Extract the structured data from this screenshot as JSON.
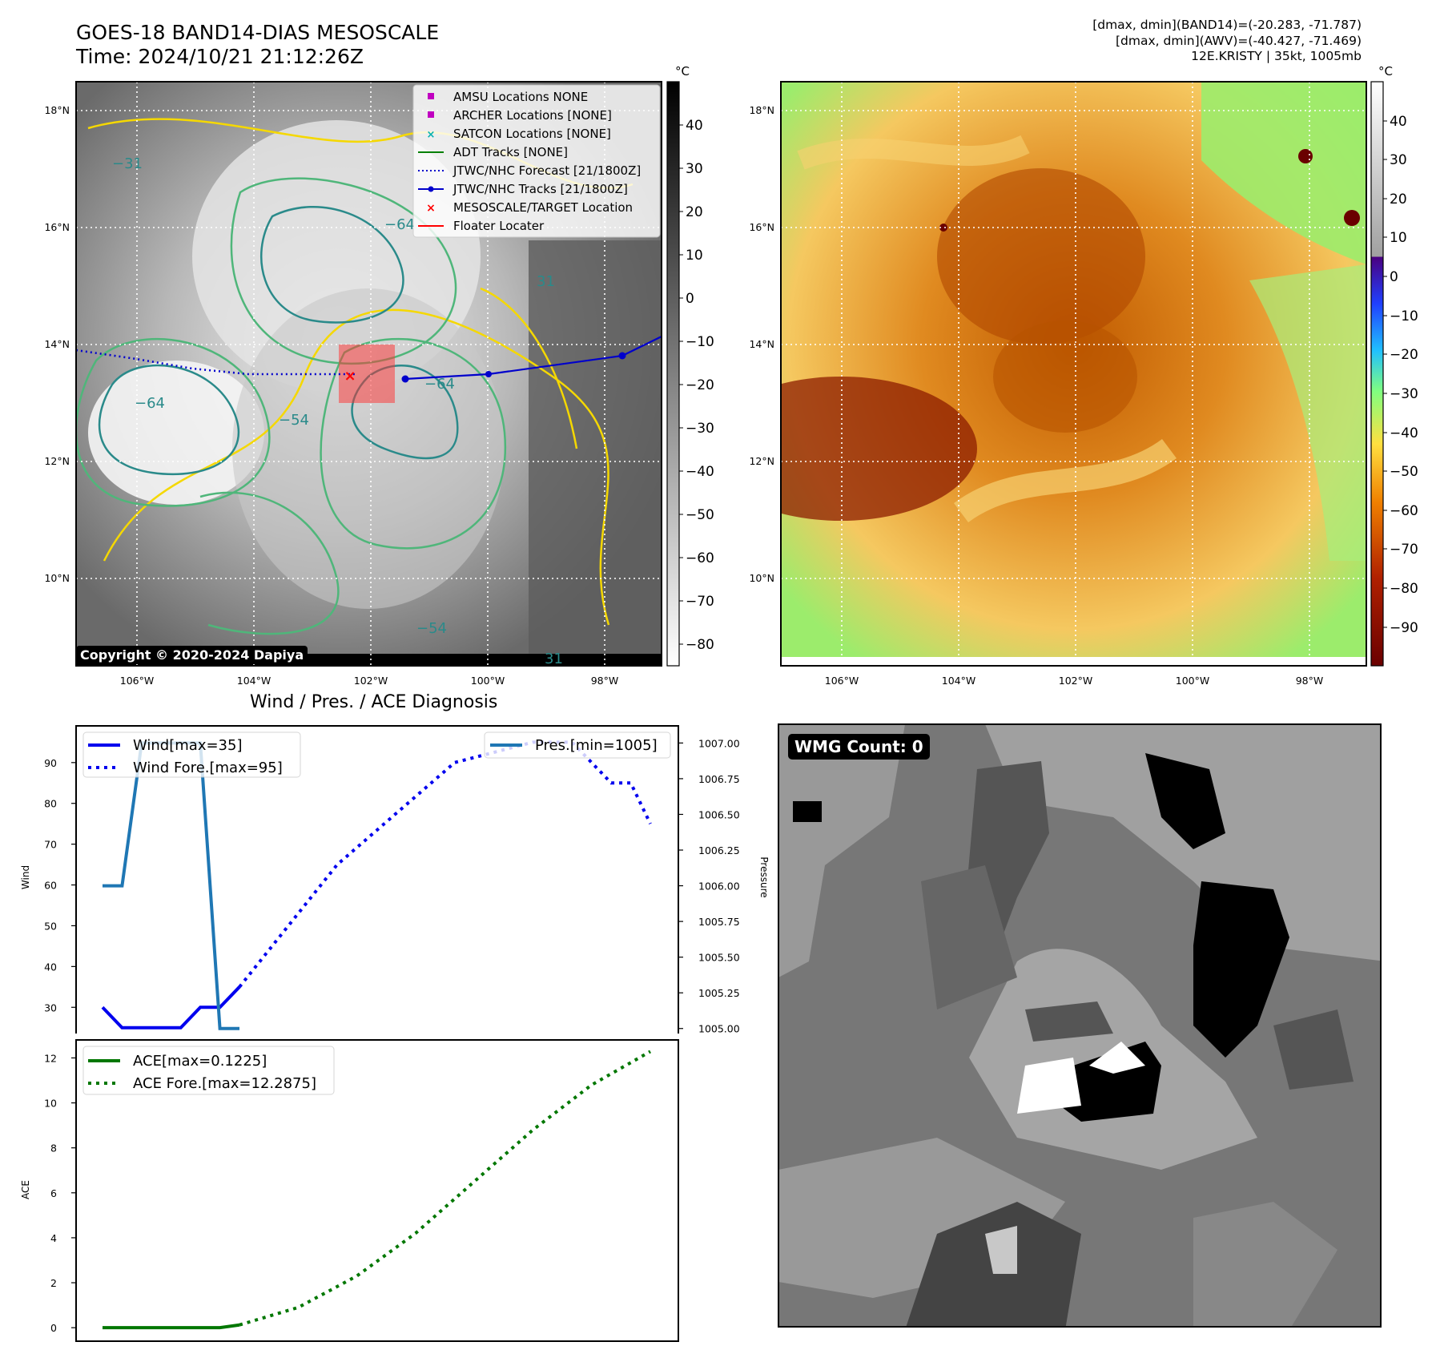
{
  "header": {
    "title_line1": "GOES-18 BAND14-DIAS MESOSCALE",
    "title_line2": "Time: 2024/10/21 21:12:26Z",
    "stats_line1": "[dmax, dmin](BAND14)=(-20.283, -71.787)",
    "stats_line2": "[dmax, dmin](AWV)=(-40.427, -71.469)",
    "stats_line3": "12E.KRISTY | 35kt, 1005mb"
  },
  "map_axes": {
    "lat_labels": [
      "18°N",
      "16°N",
      "14°N",
      "12°N",
      "10°N"
    ],
    "lon_labels": [
      "106°W",
      "104°W",
      "102°W",
      "100°W",
      "98°W"
    ]
  },
  "ir_panel": {
    "colorbar_unit": "°C",
    "colorbar_ticks": [
      "40",
      "30",
      "20",
      "10",
      "0",
      "−10",
      "−20",
      "−30",
      "−40",
      "−50",
      "−60",
      "−70",
      "−80"
    ],
    "contour_labels": [
      "−54",
      "−64",
      "−31",
      "−64",
      "−54",
      "31",
      "31",
      "−64"
    ],
    "copyright": "Copyright © 2020-2024 Dapiya",
    "legend": [
      {
        "label": "AMSU Locations NONE",
        "marker": "square",
        "color": "#c000c0"
      },
      {
        "label": "ARCHER Locations [NONE]",
        "marker": "square",
        "color": "#c000c0"
      },
      {
        "label": "SATCON Locations [NONE]",
        "marker": "x",
        "color": "#00b0b0"
      },
      {
        "label": "ADT Tracks [NONE]",
        "marker": "line",
        "color": "#008000"
      },
      {
        "label": "JTWC/NHC Forecast [21/1800Z]",
        "marker": "dotted",
        "color": "#0000cc"
      },
      {
        "label": "JTWC/NHC Tracks [21/1800Z]",
        "marker": "line-dot",
        "color": "#0000cc"
      },
      {
        "label": "MESOSCALE/TARGET Location",
        "marker": "x",
        "color": "#ff0000"
      },
      {
        "label": "Floater Locater",
        "marker": "line",
        "color": "#ff0000"
      }
    ]
  },
  "wv_panel": {
    "colorbar_unit": "°C",
    "colorbar_ticks": [
      "40",
      "30",
      "20",
      "10",
      "0",
      "−10",
      "−20",
      "−30",
      "−40",
      "−50",
      "−60",
      "−70",
      "−80",
      "−90"
    ]
  },
  "diagnosis_title": "Wind / Pres. / ACE Diagnosis",
  "wmg_label": "WMG Count: 0",
  "colors": {
    "wind": "#0000ee",
    "pressure": "#1f77b4",
    "ace": "#007700",
    "track": "#0000cc"
  },
  "chart_data": [
    {
      "type": "line",
      "ylabel": "Wind",
      "y2label": "Pressure",
      "ylim": [
        22,
        99
      ],
      "y2lim": [
        1004.92,
        1007.12
      ],
      "yticks": [
        30,
        40,
        50,
        60,
        70,
        80,
        90
      ],
      "y2ticks": [
        "1005.00",
        "1005.25",
        "1005.50",
        "1005.75",
        "1006.00",
        "1006.25",
        "1006.50",
        "1006.75",
        "1007.00"
      ],
      "grid": false,
      "legend_position": "upper-left / upper-right",
      "series": [
        {
          "name": "Wind[max=35]",
          "style": "solid",
          "axis": "left",
          "x": [
            0,
            1,
            2,
            3,
            4,
            5,
            6,
            7
          ],
          "values": [
            30,
            25,
            25,
            25,
            25,
            30,
            30,
            35
          ]
        },
        {
          "name": "Wind Fore.[max=95]",
          "style": "dotted",
          "axis": "left",
          "x": [
            7,
            12,
            18,
            22,
            24,
            25,
            26,
            27,
            28
          ],
          "values": [
            35,
            65,
            90,
            95,
            95,
            90,
            85,
            85,
            75
          ]
        },
        {
          "name": "Pres.[min=1005]",
          "style": "solid",
          "axis": "right",
          "x": [
            0,
            1,
            2,
            3,
            4,
            5,
            6,
            7
          ],
          "values": [
            1006.0,
            1006.0,
            1007.0,
            1007.0,
            1007.0,
            1007.0,
            1005.0,
            1005.0
          ]
        }
      ]
    },
    {
      "type": "line",
      "ylabel": "ACE",
      "ylim": [
        -0.6,
        12.8
      ],
      "yticks": [
        0,
        2,
        4,
        6,
        8,
        10,
        12
      ],
      "grid": false,
      "legend_position": "upper-left",
      "series": [
        {
          "name": "ACE[max=0.1225]",
          "style": "solid",
          "x": [
            0,
            6,
            7
          ],
          "values": [
            0,
            0,
            0.1225
          ]
        },
        {
          "name": "ACE Fore.[max=12.2875]",
          "style": "dotted",
          "x": [
            7,
            10,
            13,
            16,
            19,
            22,
            25,
            28
          ],
          "values": [
            0.1225,
            0.9,
            2.3,
            4.2,
            6.5,
            8.8,
            10.8,
            12.2875
          ]
        }
      ]
    }
  ]
}
